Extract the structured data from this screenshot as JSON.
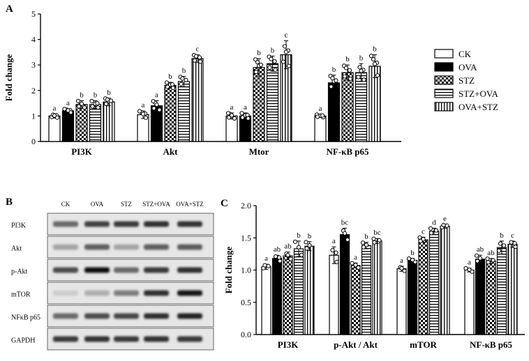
{
  "panels": {
    "a": "A",
    "b": "B",
    "c": "C"
  },
  "legend": [
    "CK",
    "OVA",
    "STZ",
    "STZ+OVA",
    "OVA+STZ"
  ],
  "blot": {
    "lanes": [
      "CK",
      "OVA",
      "STZ",
      "STZ+OVA",
      "OVA+STZ"
    ],
    "rows": [
      "PI3K",
      "Akt",
      "p-Akt",
      "mTOR",
      "NFκB p65",
      "GAPDH"
    ],
    "intensity": [
      [
        0.55,
        0.75,
        0.8,
        0.85,
        0.82
      ],
      [
        0.25,
        0.6,
        0.25,
        0.6,
        0.62
      ],
      [
        0.7,
        1.0,
        0.55,
        0.8,
        0.85
      ],
      [
        0.05,
        0.2,
        0.45,
        0.85,
        0.95
      ],
      [
        0.55,
        0.7,
        0.72,
        0.85,
        0.9
      ],
      [
        0.8,
        0.82,
        0.8,
        0.82,
        0.8
      ]
    ]
  },
  "chart_data": [
    {
      "type": "bar",
      "panel": "A",
      "categories": [
        "PI3K",
        "Akt",
        "Mtor",
        "NF-κB p65"
      ],
      "ylabel": "Fold change",
      "ylim": [
        0,
        5
      ],
      "yticks": [
        "0",
        "1",
        "2",
        "3",
        "4",
        "5"
      ],
      "series": [
        {
          "name": "CK",
          "values": [
            1.0,
            1.05,
            1.0,
            1.0
          ],
          "errors": [
            0.08,
            0.15,
            0.12,
            0.06
          ],
          "letters": [
            "a",
            "a",
            "a",
            "a"
          ]
        },
        {
          "name": "OVA",
          "values": [
            1.2,
            1.4,
            1.0,
            2.3
          ],
          "errors": [
            0.08,
            0.2,
            0.12,
            0.3
          ],
          "letters": [
            "a",
            "a",
            "a",
            "b"
          ]
        },
        {
          "name": "STZ",
          "values": [
            1.45,
            2.2,
            2.9,
            2.7
          ],
          "errors": [
            0.15,
            0.12,
            0.35,
            0.3
          ],
          "letters": [
            "b",
            "b",
            "b",
            "b"
          ]
        },
        {
          "name": "STZ+OVA",
          "values": [
            1.45,
            2.35,
            3.05,
            2.7
          ],
          "errors": [
            0.15,
            0.2,
            0.3,
            0.35
          ],
          "letters": [
            "b",
            "b",
            "b",
            "b"
          ]
        },
        {
          "name": "OVA+STZ",
          "values": [
            1.55,
            3.25,
            3.4,
            2.95
          ],
          "errors": [
            0.15,
            0.15,
            0.55,
            0.45
          ],
          "letters": [
            "b",
            "c",
            "c",
            "b"
          ]
        }
      ]
    },
    {
      "type": "bar",
      "panel": "C",
      "categories": [
        "PI3K",
        "p-Akt / Akt",
        "mTOR",
        "NF-κB p65"
      ],
      "ylabel": "Fold change",
      "ylim": [
        0,
        2
      ],
      "yticks": [
        "0.0",
        "0.5",
        "1.0",
        "1.5",
        "2.0"
      ],
      "series": [
        {
          "name": "CK",
          "values": [
            1.05,
            1.23,
            1.02,
            1.0
          ],
          "errors": [
            0.04,
            0.13,
            0.04,
            0.03
          ],
          "letters": [
            "a",
            "a",
            "a",
            "a"
          ]
        },
        {
          "name": "OVA",
          "values": [
            1.18,
            1.55,
            1.15,
            1.17
          ],
          "errors": [
            0.05,
            0.1,
            0.03,
            0.06
          ],
          "letters": [
            "ab",
            "bc",
            "b",
            "ab"
          ]
        },
        {
          "name": "STZ",
          "values": [
            1.22,
            1.07,
            1.47,
            1.14
          ],
          "errors": [
            0.06,
            0.04,
            0.04,
            0.04
          ],
          "letters": [
            "ab",
            "a",
            "c",
            "ab"
          ]
        },
        {
          "name": "STZ+OVA",
          "values": [
            1.33,
            1.38,
            1.6,
            1.35
          ],
          "errors": [
            0.12,
            0.05,
            0.05,
            0.1
          ],
          "letters": [
            "b",
            "b",
            "d",
            "b"
          ]
        },
        {
          "name": "OVA+STZ",
          "values": [
            1.37,
            1.45,
            1.68,
            1.4
          ],
          "errors": [
            0.07,
            0.04,
            0.03,
            0.05
          ],
          "letters": [
            "b",
            "bc",
            "e",
            "c"
          ]
        }
      ]
    }
  ]
}
